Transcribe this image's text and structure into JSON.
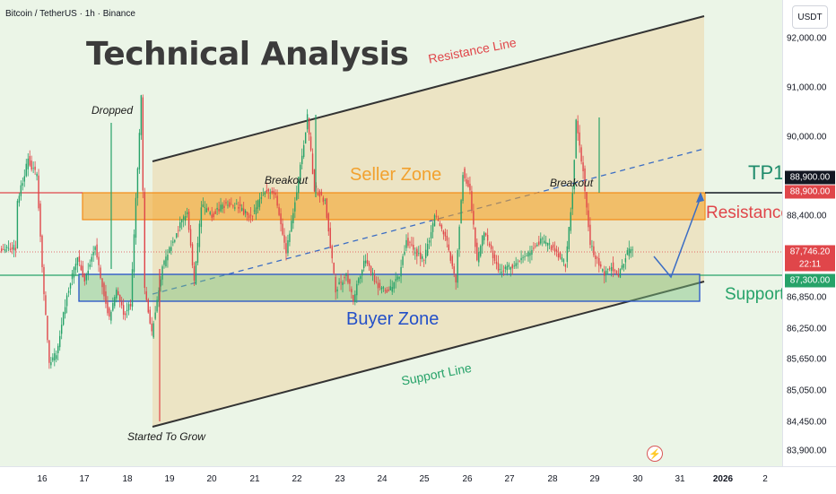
{
  "header": {
    "symbol": "Bitcoin / TetherUS · 1h · Binance",
    "title": "Technical Analysis"
  },
  "annotations": {
    "resistance_line": "Resistance Line",
    "support_line": "Support Line",
    "seller_zone": "Seller Zone",
    "buyer_zone": "Buyer Zone",
    "breakout_left": "Breakout",
    "breakout_right": "Breakout",
    "dropped": "Dropped",
    "started_to_grow": "Started To Grow",
    "tp1": "TP1",
    "resistance": "Resistance",
    "support": "Support"
  },
  "colors": {
    "tp1": "#1f8c6c",
    "resistance": "#e0464a",
    "support": "#26a269",
    "seller_zone": "#f2a12e",
    "buyer_zone": "#2450c8",
    "candle_up": "#26a269",
    "candle_down": "#e0464a"
  },
  "price_axis": {
    "currency": "USDT",
    "ticks": [
      "92,000.00",
      "91,000.00",
      "90,000.00",
      "88,400.00",
      "86,850.00",
      "86,250.00",
      "85,650.00",
      "85,050.00",
      "84,450.00",
      "83,900.00"
    ],
    "tick_values": [
      92000,
      91000,
      90000,
      88400,
      86850,
      86250,
      85650,
      85050,
      84450,
      83900
    ],
    "labels": {
      "tp1": "88,900.00",
      "resistance": "88,900.00",
      "current_price": "87,746.20",
      "countdown": "22:11",
      "support": "87,300.00"
    }
  },
  "time_axis": {
    "ticks": [
      "16",
      "17",
      "18",
      "19",
      "20",
      "21",
      "22",
      "23",
      "24",
      "25",
      "26",
      "27",
      "28",
      "29",
      "30",
      "31",
      "2026",
      "2"
    ]
  }
}
